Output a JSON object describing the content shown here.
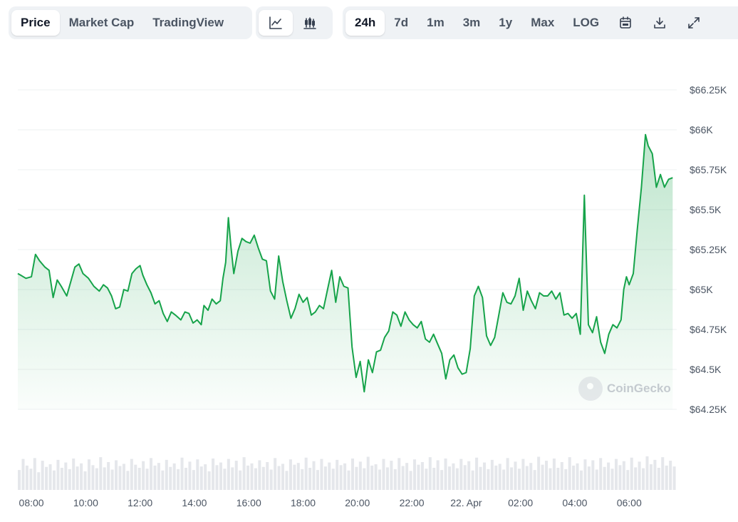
{
  "toolbar": {
    "view_tabs": [
      "Price",
      "Market Cap",
      "TradingView"
    ],
    "active_view": "Price",
    "chart_styles": [
      {
        "name": "line-chart-icon",
        "active": true
      },
      {
        "name": "candlestick-icon",
        "active": false
      }
    ],
    "ranges": [
      "24h",
      "7d",
      "1m",
      "3m",
      "1y",
      "Max",
      "LOG"
    ],
    "active_range": "24h",
    "tools": [
      "calendar-icon",
      "download-icon",
      "expand-icon"
    ]
  },
  "watermark": "CoinGecko",
  "colors": {
    "line": "#16a34a",
    "area": "#16a34a",
    "volume": "#e5e7eb",
    "grid": "#eef0f2"
  },
  "chart_data": {
    "type": "area",
    "x_range": [
      "07:30",
      "07:45 (+1 day)"
    ],
    "ylim": [
      64250,
      66250
    ],
    "y_ticks": [
      {
        "value": 66250,
        "label": "$66.25K"
      },
      {
        "value": 66000,
        "label": "$66K"
      },
      {
        "value": 65750,
        "label": "$65.75K"
      },
      {
        "value": 65500,
        "label": "$65.5K"
      },
      {
        "value": 65250,
        "label": "$65.25K"
      },
      {
        "value": 65000,
        "label": "$65K"
      },
      {
        "value": 64750,
        "label": "$64.75K"
      },
      {
        "value": 64500,
        "label": "$64.5K"
      },
      {
        "value": 64250,
        "label": "$64.25K"
      }
    ],
    "x_ticks": [
      {
        "hour": 8,
        "label": "08:00"
      },
      {
        "hour": 10,
        "label": "10:00"
      },
      {
        "hour": 12,
        "label": "12:00"
      },
      {
        "hour": 14,
        "label": "14:00"
      },
      {
        "hour": 16,
        "label": "16:00"
      },
      {
        "hour": 18,
        "label": "18:00"
      },
      {
        "hour": 20,
        "label": "20:00"
      },
      {
        "hour": 22,
        "label": "22:00"
      },
      {
        "hour": 24,
        "label": "22. Apr"
      },
      {
        "hour": 26,
        "label": "02:00"
      },
      {
        "hour": 28,
        "label": "04:00"
      },
      {
        "hour": 30,
        "label": "06:00"
      }
    ],
    "series": [
      {
        "points": [
          [
            7.5,
            65100
          ],
          [
            7.6,
            65090
          ],
          [
            7.8,
            65070
          ],
          [
            8.0,
            65080
          ],
          [
            8.15,
            65220
          ],
          [
            8.3,
            65180
          ],
          [
            8.5,
            65140
          ],
          [
            8.65,
            65120
          ],
          [
            8.8,
            64950
          ],
          [
            8.95,
            65060
          ],
          [
            9.1,
            65020
          ],
          [
            9.3,
            64960
          ],
          [
            9.45,
            65050
          ],
          [
            9.6,
            65140
          ],
          [
            9.75,
            65160
          ],
          [
            9.9,
            65100
          ],
          [
            10.1,
            65070
          ],
          [
            10.3,
            65020
          ],
          [
            10.5,
            64990
          ],
          [
            10.65,
            65030
          ],
          [
            10.8,
            65010
          ],
          [
            10.95,
            64960
          ],
          [
            11.1,
            64880
          ],
          [
            11.25,
            64890
          ],
          [
            11.4,
            65000
          ],
          [
            11.55,
            64990
          ],
          [
            11.7,
            65100
          ],
          [
            11.85,
            65130
          ],
          [
            12.0,
            65150
          ],
          [
            12.1,
            65090
          ],
          [
            12.25,
            65030
          ],
          [
            12.4,
            64980
          ],
          [
            12.55,
            64910
          ],
          [
            12.7,
            64930
          ],
          [
            12.85,
            64850
          ],
          [
            13.0,
            64800
          ],
          [
            13.15,
            64860
          ],
          [
            13.3,
            64840
          ],
          [
            13.5,
            64810
          ],
          [
            13.65,
            64860
          ],
          [
            13.8,
            64850
          ],
          [
            13.95,
            64790
          ],
          [
            14.1,
            64810
          ],
          [
            14.25,
            64780
          ],
          [
            14.35,
            64900
          ],
          [
            14.5,
            64870
          ],
          [
            14.65,
            64940
          ],
          [
            14.8,
            64910
          ],
          [
            14.95,
            64930
          ],
          [
            15.05,
            65070
          ],
          [
            15.15,
            65170
          ],
          [
            15.25,
            65450
          ],
          [
            15.35,
            65260
          ],
          [
            15.45,
            65100
          ],
          [
            15.6,
            65240
          ],
          [
            15.75,
            65320
          ],
          [
            15.9,
            65300
          ],
          [
            16.05,
            65290
          ],
          [
            16.2,
            65340
          ],
          [
            16.35,
            65260
          ],
          [
            16.5,
            65190
          ],
          [
            16.65,
            65180
          ],
          [
            16.8,
            64990
          ],
          [
            16.95,
            64940
          ],
          [
            17.1,
            65210
          ],
          [
            17.25,
            65050
          ],
          [
            17.4,
            64930
          ],
          [
            17.55,
            64820
          ],
          [
            17.7,
            64880
          ],
          [
            17.85,
            64970
          ],
          [
            18.0,
            64920
          ],
          [
            18.15,
            64950
          ],
          [
            18.3,
            64840
          ],
          [
            18.45,
            64860
          ],
          [
            18.6,
            64900
          ],
          [
            18.75,
            64880
          ],
          [
            18.9,
            65000
          ],
          [
            19.05,
            65120
          ],
          [
            19.2,
            64920
          ],
          [
            19.35,
            65080
          ],
          [
            19.5,
            65020
          ],
          [
            19.65,
            65010
          ],
          [
            19.8,
            64640
          ],
          [
            19.95,
            64450
          ],
          [
            20.1,
            64550
          ],
          [
            20.25,
            64360
          ],
          [
            20.4,
            64560
          ],
          [
            20.55,
            64480
          ],
          [
            20.7,
            64610
          ],
          [
            20.85,
            64620
          ],
          [
            21.0,
            64700
          ],
          [
            21.15,
            64740
          ],
          [
            21.3,
            64860
          ],
          [
            21.45,
            64840
          ],
          [
            21.6,
            64770
          ],
          [
            21.75,
            64860
          ],
          [
            21.9,
            64810
          ],
          [
            22.05,
            64780
          ],
          [
            22.2,
            64760
          ],
          [
            22.35,
            64800
          ],
          [
            22.5,
            64690
          ],
          [
            22.65,
            64670
          ],
          [
            22.8,
            64720
          ],
          [
            22.95,
            64660
          ],
          [
            23.1,
            64600
          ],
          [
            23.25,
            64440
          ],
          [
            23.4,
            64560
          ],
          [
            23.55,
            64590
          ],
          [
            23.7,
            64510
          ],
          [
            23.85,
            64470
          ],
          [
            24.0,
            64480
          ],
          [
            24.15,
            64630
          ],
          [
            24.3,
            64960
          ],
          [
            24.45,
            65020
          ],
          [
            24.6,
            64950
          ],
          [
            24.75,
            64710
          ],
          [
            24.9,
            64650
          ],
          [
            25.05,
            64700
          ],
          [
            25.2,
            64840
          ],
          [
            25.35,
            64980
          ],
          [
            25.5,
            64920
          ],
          [
            25.65,
            64910
          ],
          [
            25.8,
            64960
          ],
          [
            25.95,
            65070
          ],
          [
            26.1,
            64870
          ],
          [
            26.25,
            64990
          ],
          [
            26.4,
            64930
          ],
          [
            26.55,
            64880
          ],
          [
            26.7,
            64980
          ],
          [
            26.85,
            64960
          ],
          [
            27.0,
            64960
          ],
          [
            27.15,
            64990
          ],
          [
            27.3,
            64940
          ],
          [
            27.45,
            64980
          ],
          [
            27.6,
            64840
          ],
          [
            27.75,
            64850
          ],
          [
            27.9,
            64820
          ],
          [
            28.05,
            64850
          ],
          [
            28.2,
            64720
          ],
          [
            28.35,
            65590
          ],
          [
            28.5,
            64780
          ],
          [
            28.65,
            64730
          ],
          [
            28.8,
            64830
          ],
          [
            28.95,
            64670
          ],
          [
            29.1,
            64600
          ],
          [
            29.25,
            64720
          ],
          [
            29.4,
            64780
          ],
          [
            29.55,
            64760
          ],
          [
            29.7,
            64810
          ],
          [
            29.8,
            65000
          ],
          [
            29.9,
            65080
          ],
          [
            30.0,
            65030
          ],
          [
            30.15,
            65100
          ],
          [
            30.3,
            65380
          ],
          [
            30.45,
            65640
          ],
          [
            30.6,
            65970
          ],
          [
            30.7,
            65900
          ],
          [
            30.85,
            65850
          ],
          [
            31.0,
            65640
          ],
          [
            31.15,
            65720
          ],
          [
            31.3,
            65640
          ],
          [
            31.45,
            65690
          ],
          [
            31.6,
            65700
          ]
        ]
      }
    ],
    "volume": [
      0.45,
      0.7,
      0.55,
      0.48,
      0.72,
      0.4,
      0.66,
      0.52,
      0.58,
      0.44,
      0.68,
      0.5,
      0.62,
      0.47,
      0.71,
      0.53,
      0.6,
      0.42,
      0.69,
      0.56,
      0.49,
      0.74,
      0.51,
      0.63,
      0.46,
      0.67,
      0.54,
      0.59,
      0.43,
      0.7,
      0.57,
      0.5,
      0.65,
      0.48,
      0.72,
      0.55,
      0.61,
      0.44,
      0.68,
      0.52,
      0.6,
      0.47,
      0.73,
      0.5,
      0.64,
      0.45,
      0.69,
      0.53,
      0.58,
      0.42,
      0.71,
      0.56,
      0.62,
      0.48,
      0.7,
      0.51,
      0.66,
      0.44,
      0.74,
      0.55,
      0.6,
      0.49,
      0.67,
      0.52,
      0.63,
      0.46,
      0.72,
      0.54,
      0.59,
      0.43,
      0.69,
      0.57,
      0.61,
      0.47,
      0.73,
      0.5,
      0.65,
      0.45,
      0.7,
      0.53,
      0.62,
      0.48,
      0.68,
      0.56,
      0.6,
      0.44,
      0.71,
      0.52,
      0.64,
      0.49,
      0.75,
      0.55,
      0.58,
      0.46,
      0.7,
      0.51,
      0.66,
      0.47,
      0.72,
      0.54,
      0.61,
      0.43,
      0.69,
      0.57,
      0.63,
      0.48,
      0.74,
      0.5,
      0.67,
      0.45,
      0.71,
      0.53,
      0.6,
      0.49,
      0.7,
      0.56,
      0.65,
      0.44,
      0.73,
      0.52,
      0.62,
      0.47,
      0.68,
      0.55,
      0.59,
      0.46,
      0.72,
      0.51,
      0.64,
      0.48,
      0.7,
      0.54,
      0.61,
      0.45,
      0.75,
      0.57,
      0.66,
      0.49,
      0.71,
      0.5,
      0.63,
      0.47,
      0.74,
      0.55,
      0.6,
      0.44,
      0.69,
      0.53,
      0.67,
      0.46,
      0.72,
      0.52,
      0.62,
      0.48,
      0.7,
      0.56,
      0.65,
      0.45,
      0.73,
      0.51,
      0.64,
      0.49,
      0.76,
      0.58,
      0.68,
      0.5,
      0.74,
      0.55,
      0.66,
      0.53
    ]
  }
}
